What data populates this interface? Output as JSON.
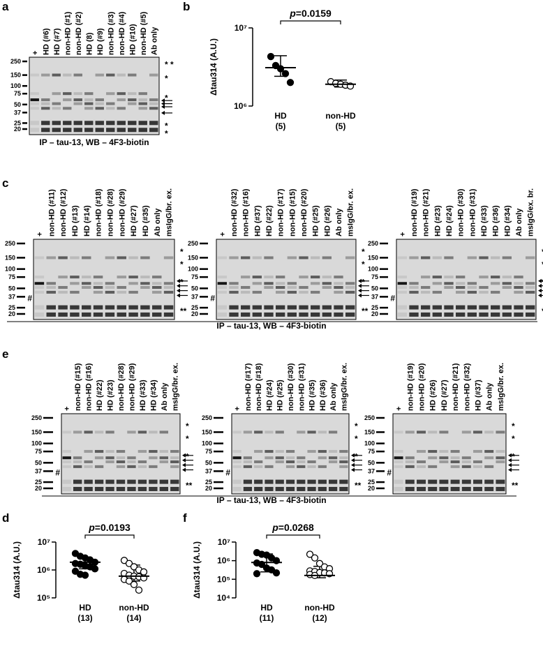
{
  "blot_panels": [
    {
      "panel_label": "a",
      "caption": "IP – tau-13, WB – 4F3-biotin",
      "blots": [
        {
          "lanes": [
            "+",
            "HD (#6)",
            "HD (#7)",
            "non-HD (#1)",
            "non-HD (#2)",
            "HD (8)",
            "HD (#9)",
            "non-HD (#3)",
            "non-HD (#4)",
            "HD (#10)",
            "non-HD (#5)",
            "Ab only"
          ],
          "markers": [
            250,
            150,
            100,
            75,
            50,
            37,
            25,
            20
          ],
          "side_marks": [
            "* *",
            "*",
            "*",
            "*",
            "*"
          ]
        }
      ]
    },
    {
      "panel_label": "c",
      "caption": "IP – tau-13, WB – 4F3-biotin",
      "blots": [
        {
          "lanes": [
            "+",
            "non-HD (#11)",
            "non-HD (#12)",
            "HD (#13)",
            "HD (#14)",
            "non-HD (#18)",
            "non-HD (#28)",
            "non-HD (#29)",
            "HD (#27)",
            "HD (#35)",
            "Ab only",
            "msIgG/br. ex."
          ],
          "markers": [
            250,
            150,
            100,
            75,
            50,
            37,
            25,
            20
          ],
          "hash": "#",
          "side_marks": [
            "*",
            "*",
            "*",
            "**"
          ]
        },
        {
          "lanes": [
            "+",
            "non-HD (#32)",
            "non-HD (#16)",
            "HD (#37)",
            "HD (#22)",
            "non-HD (#17)",
            "non-HD (#15)",
            "non-HD (#20)",
            "HD (#25)",
            "HD (#26)",
            "Ab only",
            "msIgG/br. ex."
          ],
          "markers": [
            250,
            150,
            100,
            75,
            50,
            37,
            25,
            20
          ],
          "hash": "#",
          "side_marks": [
            "*",
            "*",
            "*",
            "**"
          ]
        },
        {
          "lanes": [
            "+",
            "non-HD (#19)",
            "non-HD (#21)",
            "HD (#23)",
            "HD (#24)",
            "non-HD (#30)",
            "non-HD (#31)",
            "HD (#33)",
            "HD (#36)",
            "HD (#34)",
            "Ab only",
            "msIgG/ex. br."
          ],
          "markers": [
            250,
            150,
            100,
            75,
            50,
            37,
            25,
            20
          ],
          "hash": "#",
          "side_marks": [
            "*",
            "*",
            "*",
            "**"
          ]
        }
      ]
    },
    {
      "panel_label": "e",
      "caption": "IP – tau-13, WB – 4F3-biotin",
      "blots": [
        {
          "lanes": [
            "+",
            "non-HD (#15)",
            "non-HD (#16)",
            "HD (#22)",
            "HD (#23)",
            "non-HD (#28)",
            "non-HD (#29)",
            "HD (#33)",
            "HD (#34)",
            "Ab only",
            "msIgG/br. ex."
          ],
          "markers": [
            250,
            150,
            100,
            75,
            50,
            37,
            25,
            20
          ],
          "hash": "#",
          "side_marks": [
            "*",
            "*",
            "*",
            "**"
          ]
        },
        {
          "lanes": [
            "+",
            "non-HD (#17)",
            "non-HD (#18)",
            "HD (#24)",
            "HD (#25)",
            "non-HD (#30)",
            "non-HD (#31)",
            "HD (#35)",
            "HD (#36)",
            "Ab only",
            "msIgG/br. ex."
          ],
          "markers": [
            250,
            150,
            100,
            75,
            50,
            37,
            25,
            20
          ],
          "hash": "#",
          "side_marks": [
            "*",
            "*",
            "*",
            "**"
          ]
        },
        {
          "lanes": [
            "+",
            "non-HD (#19)",
            "non-HD (#20)",
            "HD (#26)",
            "HD (#27)",
            "non-HD (#21)",
            "non-HD (#32)",
            "HD (#37)",
            "Ab only",
            "msIgG/br. ex."
          ],
          "markers": [
            250,
            150,
            100,
            75,
            50,
            37,
            25,
            20
          ],
          "hash": "#",
          "side_marks": [
            "*",
            "*",
            "*",
            "**"
          ]
        }
      ]
    }
  ],
  "chart_data": [
    {
      "type": "scatter",
      "panel_label": "b",
      "ylabel": "Δtau314 (A.U.)",
      "annotation_var": "p",
      "annotation_value": "=0.0159",
      "categories": [
        "HD",
        "non-HD"
      ],
      "group_counts": [
        "(5)",
        "(5)"
      ],
      "log_y": true,
      "ylim": [
        1000000,
        10000000
      ],
      "yticks": [
        {
          "value": 1000000,
          "label": "10⁶"
        },
        {
          "value": 10000000,
          "label": "10⁷"
        }
      ],
      "series": [
        {
          "color": "#000000",
          "values": [
            4300000,
            3300000,
            3000000,
            2600000,
            2000000
          ],
          "center": 3100000,
          "error": [
            2400000,
            4400000
          ]
        },
        {
          "color": "#ffffff",
          "values": [
            2050000,
            1950000,
            1900000,
            1850000,
            1800000
          ],
          "center": 1900000,
          "error": [
            1750000,
            2150000
          ]
        }
      ]
    },
    {
      "type": "scatter",
      "panel_label": "d",
      "ylabel": "Δtau314 (A.U.)",
      "annotation_var": "p",
      "annotation_value": "=0.0193",
      "categories": [
        "HD",
        "non-HD"
      ],
      "group_counts": [
        "(13)",
        "(14)"
      ],
      "log_y": true,
      "ylim": [
        100000,
        10000000
      ],
      "yticks": [
        {
          "value": 100000,
          "label": "10⁵"
        },
        {
          "value": 1000000,
          "label": "10⁶"
        },
        {
          "value": 10000000,
          "label": "10⁷"
        }
      ],
      "series": [
        {
          "color": "#000000",
          "values": [
            3900000,
            3100000,
            2700000,
            2300000,
            1900000,
            1700000,
            1600000,
            1400000,
            1300000,
            1100000,
            900000,
            700000,
            650000
          ],
          "center": 1900000,
          "error": [
            1100000,
            2700000
          ]
        },
        {
          "color": "#ffffff",
          "values": [
            2200000,
            1700000,
            1300000,
            1000000,
            850000,
            750000,
            650000,
            600000,
            570000,
            520000,
            460000,
            400000,
            300000,
            190000
          ],
          "center": 600000,
          "error": [
            400000,
            1500000
          ]
        }
      ]
    },
    {
      "type": "scatter",
      "panel_label": "f",
      "ylabel": "Δtau314 (A.U.)",
      "annotation_var": "p",
      "annotation_value": "=0.0268",
      "categories": [
        "HD",
        "non-HD"
      ],
      "group_counts": [
        "(11)",
        "(12)"
      ],
      "log_y": true,
      "ylim": [
        10000,
        10000000
      ],
      "yticks": [
        {
          "value": 10000,
          "label": "10⁴"
        },
        {
          "value": 100000,
          "label": "10⁵"
        },
        {
          "value": 1000000,
          "label": "10⁶"
        },
        {
          "value": 10000000,
          "label": "10⁷"
        }
      ],
      "series": [
        {
          "color": "#000000",
          "values": [
            2700000,
            2200000,
            2000000,
            1400000,
            1000000,
            750000,
            630000,
            400000,
            320000,
            220000,
            200000
          ],
          "center": 800000,
          "error": [
            250000,
            2300000
          ]
        },
        {
          "color": "#ffffff",
          "values": [
            2200000,
            1400000,
            700000,
            460000,
            370000,
            280000,
            260000,
            230000,
            220000,
            200000,
            180000,
            160000
          ],
          "center": 160000,
          "error": [
            120000,
            500000
          ]
        }
      ]
    }
  ]
}
